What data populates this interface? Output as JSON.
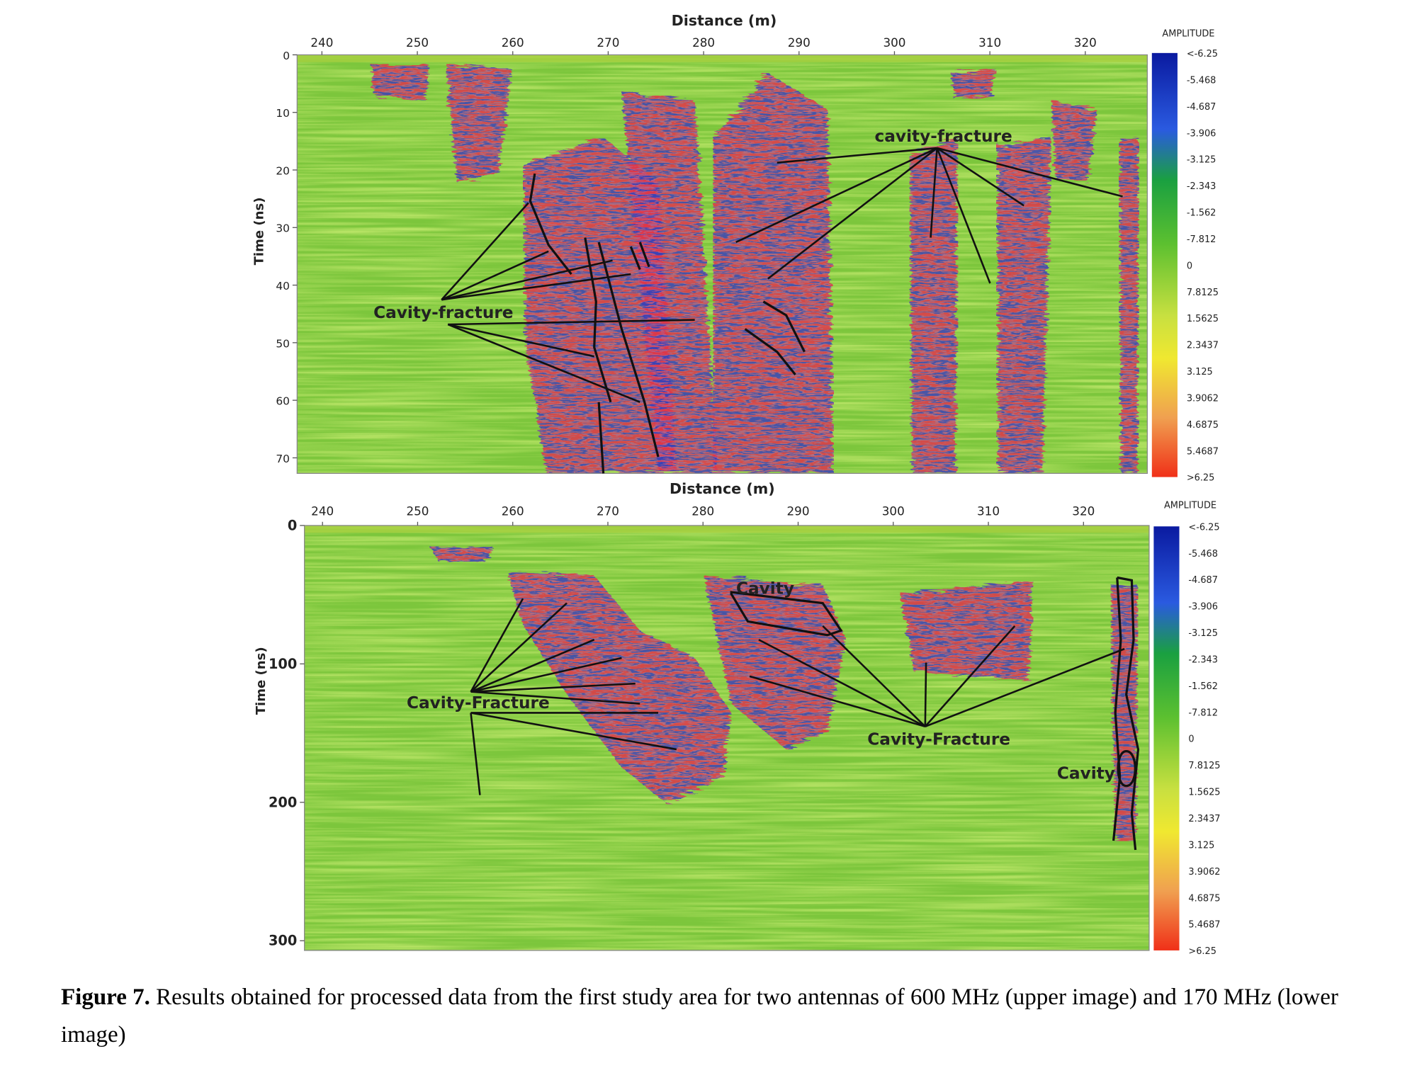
{
  "figure": {
    "panels": [
      {
        "x_label": "Distance (m)",
        "y_label": "Time (ns)",
        "xlim": [
          237.4,
          326.5
        ],
        "xticks": [
          240,
          250,
          260,
          270,
          280,
          290,
          300,
          310,
          320
        ],
        "ylim": [
          0,
          72.7
        ],
        "yticks": [
          0,
          10,
          20,
          30,
          40,
          50,
          60,
          70
        ],
        "colorbar_title": "AMPLITUDE",
        "colorbar_labels": [
          "<-6.25",
          "-5.468",
          "-4.687",
          "-3.906",
          "-3.125",
          "-2.343",
          "-1.562",
          "-7.812",
          "0",
          "7.8125",
          "1.5625",
          "2.3437",
          "3.125",
          "3.9062",
          "4.6875",
          "5.4687",
          ">6.25"
        ],
        "annotations": [
          "Cavity-fracture",
          "cavity-fracture"
        ]
      },
      {
        "x_label": "Distance (m)",
        "y_label": "Time (ns)",
        "xlim": [
          238.1,
          326.9
        ],
        "xticks": [
          240,
          250,
          260,
          270,
          280,
          290,
          300,
          310,
          320
        ],
        "ylim": [
          0,
          307
        ],
        "yticks": [
          0,
          100,
          200,
          300
        ],
        "colorbar_title": "AMPLITUDE",
        "colorbar_labels": [
          "<-6.25",
          "-5.468",
          "-4.687",
          "-3.906",
          "-3.125",
          "-2.343",
          "-1.562",
          "-7.812",
          "0",
          "7.8125",
          "1.5625",
          "2.3437",
          "3.125",
          "3.9062",
          "4.6875",
          "5.4687",
          ">6.25"
        ],
        "annotations": [
          "Cavity",
          "Cavity-Fracture",
          "Cavity-Fracture",
          "Cavity"
        ]
      }
    ],
    "caption": {
      "label": "Figure 7.",
      "text": "Results obtained for processed data from the first study area for two antennas of 600 MHz (upper image) and 170 MHz (lower image)"
    }
  }
}
